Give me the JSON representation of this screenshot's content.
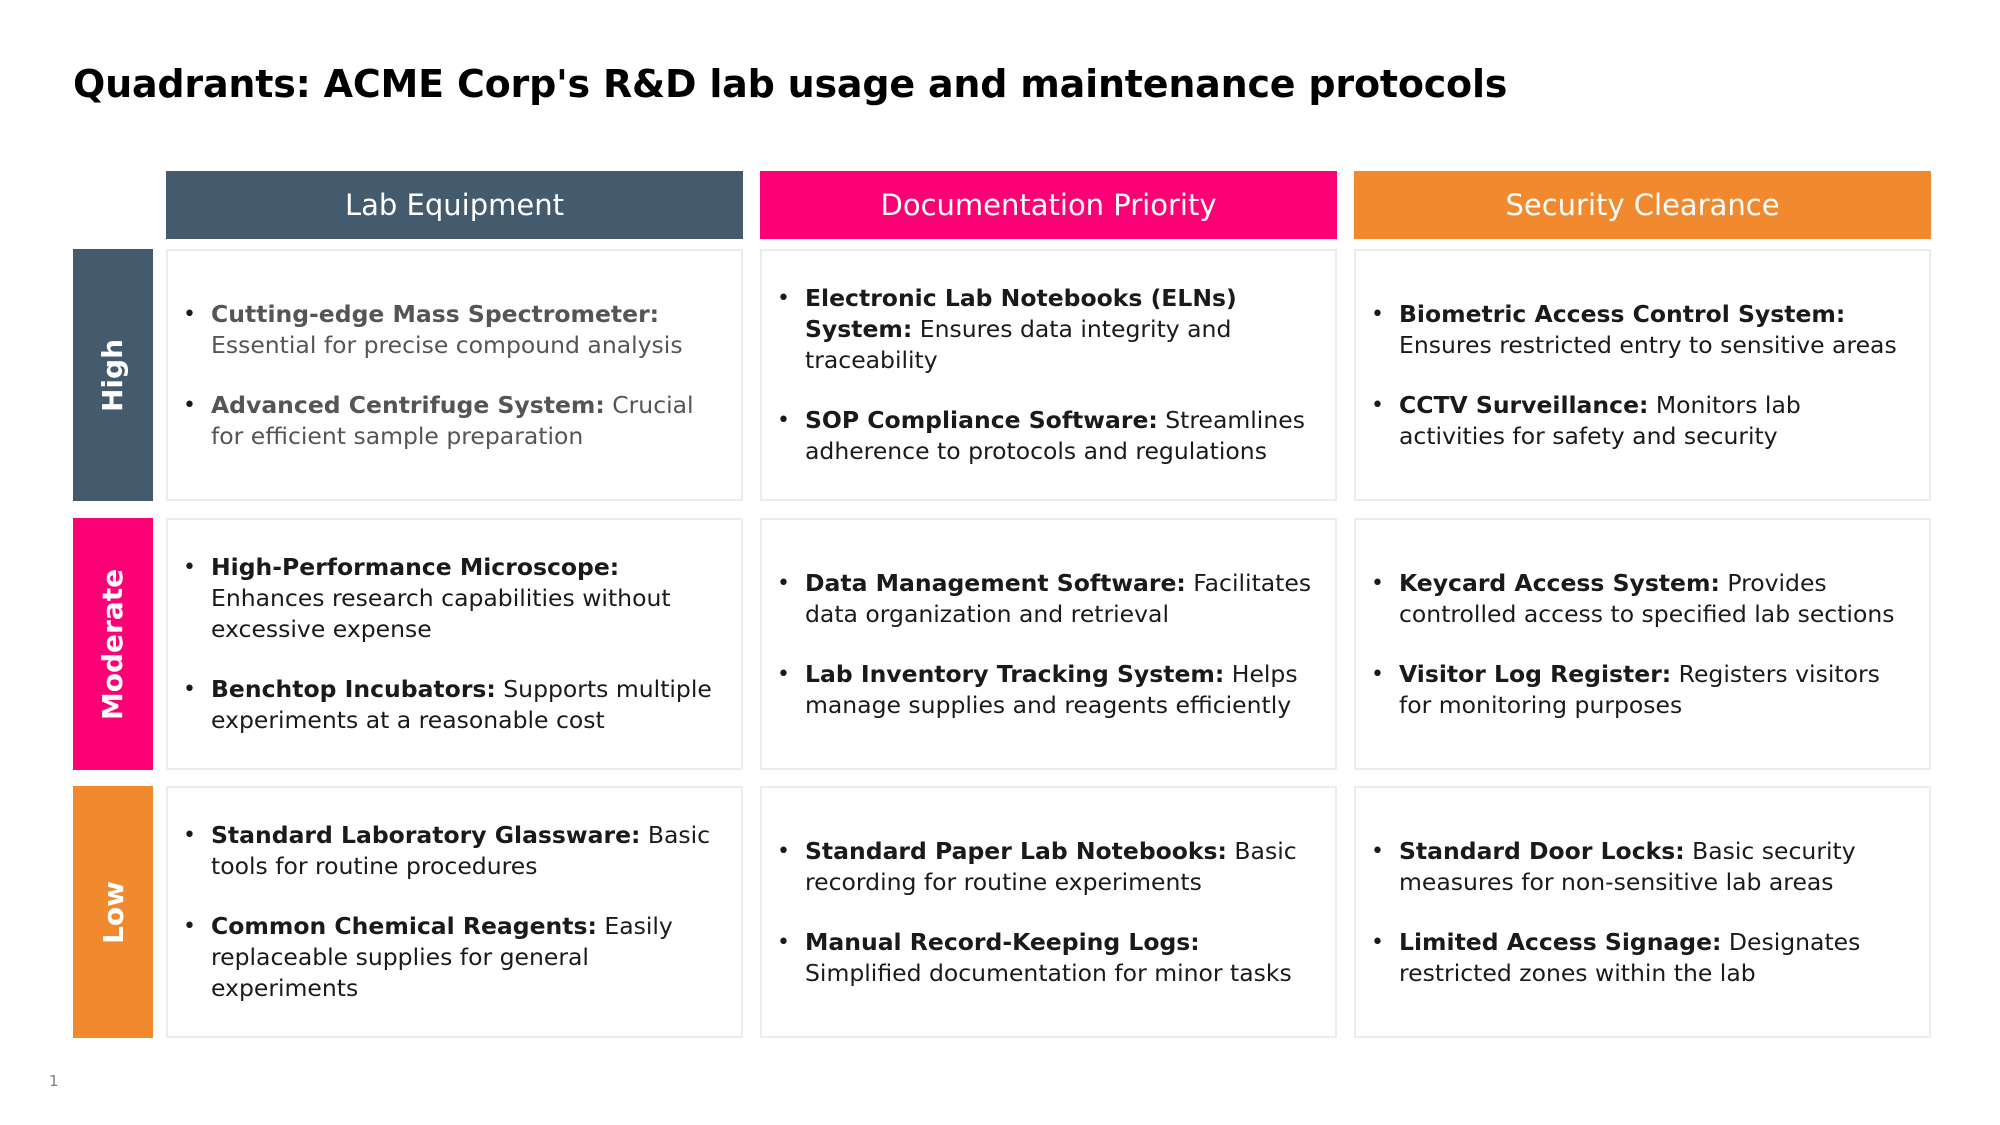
{
  "title": "Quadrants: ACME Corp's R&D lab usage and maintenance protocols",
  "page_number": "1",
  "colors": {
    "slate": "#445b6d",
    "magenta": "#fd0076",
    "orange": "#f18a2e"
  },
  "columns": [
    {
      "label": "Lab Equipment",
      "color": "#445b6d"
    },
    {
      "label": "Documentation Priority",
      "color": "#fd0076"
    },
    {
      "label": "Security Clearance",
      "color": "#f18a2e"
    }
  ],
  "rows": [
    {
      "label": "High",
      "color": "#445b6d",
      "cells": [
        {
          "items": [
            {
              "title": "Cutting-edge Mass Spectrometer:",
              "desc": " Essential for precise compound analysis"
            },
            {
              "title": "Advanced Centrifuge System:",
              "desc": " Crucial for efficient sample preparation"
            }
          ]
        },
        {
          "items": [
            {
              "title": "Electronic Lab Notebooks (ELNs) System:",
              "desc": " Ensures data integrity and traceability"
            },
            {
              "title": "SOP Compliance Software:",
              "desc": " Streamlines adherence to protocols and regulations"
            }
          ]
        },
        {
          "items": [
            {
              "title": "Biometric Access Control System:",
              "desc": " Ensures restricted entry to sensitive areas"
            },
            {
              "title": "CCTV Surveillance:",
              "desc": " Monitors lab activities for safety and security"
            }
          ]
        }
      ]
    },
    {
      "label": "Moderate",
      "color": "#fd0076",
      "cells": [
        {
          "items": [
            {
              "title": "High-Performance Microscope:",
              "desc": " Enhances research capabilities without excessive expense"
            },
            {
              "title": "Benchtop Incubators:",
              "desc": " Supports multiple experiments at a reasonable cost"
            }
          ]
        },
        {
          "items": [
            {
              "title": "Data Management Software:",
              "desc": " Facilitates data organization and retrieval"
            },
            {
              "title": "Lab Inventory Tracking System:",
              "desc": " Helps manage supplies and reagents efficiently"
            }
          ]
        },
        {
          "items": [
            {
              "title": "Keycard Access System:",
              "desc": " Provides controlled access to specified lab sections"
            },
            {
              "title": "Visitor Log Register:",
              "desc": " Registers visitors for monitoring purposes"
            }
          ]
        }
      ]
    },
    {
      "label": "Low",
      "color": "#f18a2e",
      "cells": [
        {
          "items": [
            {
              "title": "Standard Laboratory Glassware:",
              "desc": " Basic tools for routine procedures"
            },
            {
              "title": "Common Chemical Reagents:",
              "desc": " Easily replaceable supplies for general experiments"
            }
          ]
        },
        {
          "items": [
            {
              "title": "Standard Paper Lab Notebooks:",
              "desc": " Basic recording for routine experiments"
            },
            {
              "title": "Manual Record-Keeping Logs:",
              "desc": " Simplified documentation for minor tasks"
            }
          ]
        },
        {
          "items": [
            {
              "title": "Standard Door Locks:",
              "desc": " Basic security measures for non-sensitive lab areas"
            },
            {
              "title": "Limited Access Signage:",
              "desc": " Designates restricted zones within the lab"
            }
          ]
        }
      ]
    }
  ]
}
